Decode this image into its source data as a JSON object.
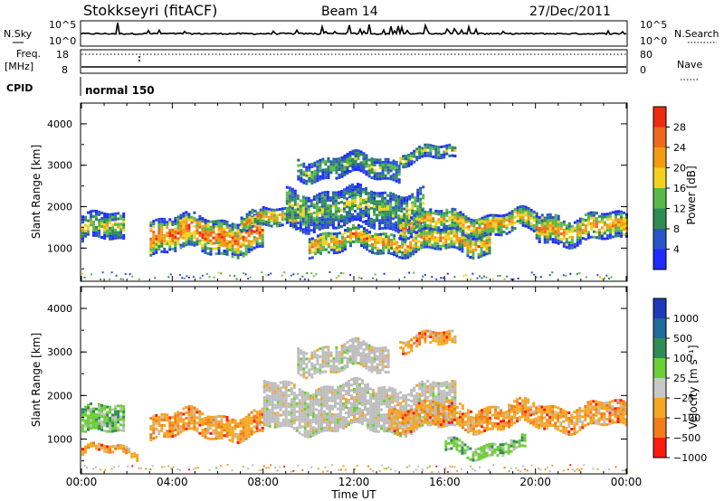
{
  "header": {
    "station": "Stokkseyri (fitACF)",
    "beam": "Beam 14",
    "date": "27/Dec/2011"
  },
  "left_labels": {
    "nsky": "N.Sky",
    "freq": "Freq.",
    "freq_unit": "[MHz]",
    "cpid": "CPID"
  },
  "right_labels": {
    "nsearch": "N.Search",
    "nave": "Nave"
  },
  "noise_panel": {
    "left_ticks": [
      "10^5",
      "10^0"
    ],
    "right_ticks": [
      "10^5",
      "10^0"
    ]
  },
  "freq_panel": {
    "left_ticks": [
      "18",
      "8"
    ],
    "right_ticks": [
      "80",
      "0"
    ]
  },
  "cpid_text": "normal 150",
  "colors": {
    "power_bins": [
      "#1e2bff",
      "#2a55c8",
      "#2f8c55",
      "#5ab84a",
      "#f2d21e",
      "#f39c12",
      "#f0681b",
      "#ee2a10"
    ],
    "velocity_bins": [
      "#ff1a10",
      "#f27d1a",
      "#f5a623",
      "#c8c8c8",
      "#6ccf36",
      "#2f8c55",
      "#1d6c9b",
      "#1f3ab8"
    ],
    "gray": "#bdbdbd"
  },
  "chart_data": [
    {
      "type": "heatmap",
      "title": "",
      "ylabel": "Slant Range [km]",
      "xlabel": "",
      "x_ticks": [
        "00:00",
        "04:00",
        "08:00",
        "12:00",
        "16:00",
        "20:00",
        "00:00"
      ],
      "y_ticks": [
        "1000",
        "2000",
        "3000",
        "4000"
      ],
      "ylim": [
        200,
        4500
      ],
      "xlim_hours": [
        0,
        24
      ],
      "colorbar": {
        "label": "Power [dB]",
        "ticks": [
          "4",
          "8",
          "12",
          "16",
          "20",
          "24",
          "28"
        ]
      },
      "bands": [
        {
          "from": 0.0,
          "to": 1.9,
          "center": 1500,
          "width": 600,
          "level": 0.55
        },
        {
          "from": 3.0,
          "to": 8.0,
          "center": 1350,
          "width": 800,
          "level": 0.85
        },
        {
          "from": 7.0,
          "to": 9.5,
          "center": 1700,
          "width": 400,
          "level": 0.7
        },
        {
          "from": 9.0,
          "to": 15.0,
          "center": 2000,
          "width": 900,
          "level": 0.45
        },
        {
          "from": 10.0,
          "to": 18.0,
          "center": 1200,
          "width": 500,
          "level": 0.75
        },
        {
          "from": 14.0,
          "to": 21.0,
          "center": 1650,
          "width": 500,
          "level": 0.7
        },
        {
          "from": 20.0,
          "to": 24.0,
          "center": 1500,
          "width": 600,
          "level": 0.75
        },
        {
          "from": 9.5,
          "to": 14.0,
          "center": 3000,
          "width": 500,
          "level": 0.4
        },
        {
          "from": 14.0,
          "to": 16.5,
          "center": 3300,
          "width": 300,
          "level": 0.45
        }
      ]
    },
    {
      "type": "heatmap",
      "title": "",
      "ylabel": "Slant Range [km]",
      "xlabel": "Time UT",
      "x_ticks": [
        "00:00",
        "04:00",
        "08:00",
        "12:00",
        "16:00",
        "20:00",
        "00:00"
      ],
      "y_ticks": [
        "1000",
        "2000",
        "3000",
        "4000"
      ],
      "ylim": [
        200,
        4500
      ],
      "xlim_hours": [
        0,
        24
      ],
      "colorbar": {
        "label": "Velocity [m s⁻¹]",
        "ticks": [
          "1000",
          "500",
          "100",
          "25",
          "−25",
          "−100",
          "−500",
          "−1000"
        ]
      },
      "bands": [
        {
          "from": 0.0,
          "to": 1.9,
          "center": 1450,
          "width": 600,
          "kind": "green"
        },
        {
          "from": 0.0,
          "to": 2.5,
          "center": 750,
          "width": 150,
          "kind": "orange"
        },
        {
          "from": 3.0,
          "to": 8.0,
          "center": 1350,
          "width": 500,
          "kind": "orange"
        },
        {
          "from": 8.0,
          "to": 16.5,
          "center": 1750,
          "width": 1000,
          "kind": "gray"
        },
        {
          "from": 9.5,
          "to": 13.5,
          "center": 2900,
          "width": 600,
          "kind": "gray"
        },
        {
          "from": 13.5,
          "to": 24.0,
          "center": 1550,
          "width": 500,
          "kind": "orange"
        },
        {
          "from": 16.0,
          "to": 19.5,
          "center": 850,
          "width": 300,
          "kind": "green"
        },
        {
          "from": 14.0,
          "to": 16.5,
          "center": 3300,
          "width": 300,
          "kind": "orange"
        }
      ]
    }
  ]
}
